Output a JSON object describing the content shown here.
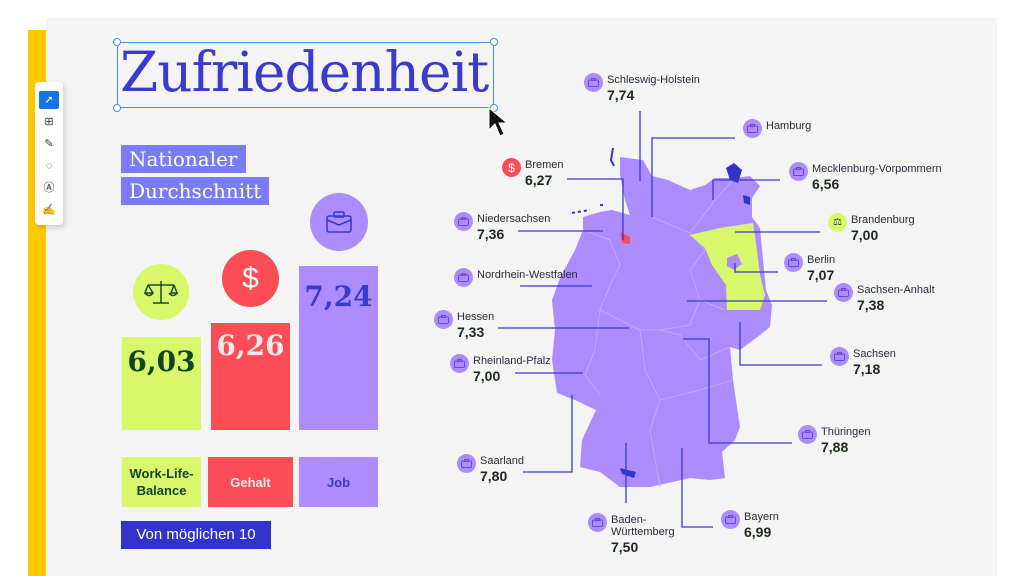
{
  "title": "Zufriedenheit",
  "subtitle": [
    "Nationaler",
    "Durchschnitt"
  ],
  "toolbar": {
    "tools": [
      "select-tool",
      "add-comment-tool",
      "highlight-tool",
      "draw-lasso-tool",
      "text-tool",
      "sign-tool"
    ]
  },
  "national": {
    "categories": [
      {
        "label": "Work-Life-Balance",
        "value": "6,03",
        "icon": "scale-icon",
        "color": "#d9f76a"
      },
      {
        "label": "Gehalt",
        "value": "6,26",
        "icon": "dollar-icon",
        "color": "#fa4d56"
      },
      {
        "label": "Job",
        "value": "7,24",
        "icon": "briefcase-icon",
        "color": "#ad8cff"
      }
    ],
    "footnote": "Von möglichen 10"
  },
  "colors": {
    "title": "#3a3acc",
    "lime": "#d9f76a",
    "red": "#fa4d56",
    "purple": "#ad8cff",
    "navy": "#3333cc",
    "map": "#ad8cff"
  },
  "regions": [
    {
      "name": "Schleswig-Holstein",
      "value": "7,74",
      "icon": "briefcase-icon"
    },
    {
      "name": "Hamburg",
      "value": "",
      "icon": "briefcase-icon"
    },
    {
      "name": "Bremen",
      "value": "6,27",
      "icon": "dollar-icon"
    },
    {
      "name": "Mecklenburg-Vorpommern",
      "value": "6,56",
      "icon": "briefcase-icon"
    },
    {
      "name": "Niedersachsen",
      "value": "7,36",
      "icon": "briefcase-icon"
    },
    {
      "name": "Brandenburg",
      "value": "7,00",
      "icon": "scale-icon"
    },
    {
      "name": "Berlin",
      "value": "7,07",
      "icon": "briefcase-icon"
    },
    {
      "name": "Nordrhein-Westfalen",
      "value": "",
      "icon": "briefcase-icon"
    },
    {
      "name": "Sachsen-Anhalt",
      "value": "7,38",
      "icon": "briefcase-icon"
    },
    {
      "name": "Hessen",
      "value": "7,33",
      "icon": "briefcase-icon"
    },
    {
      "name": "Rheinland-Pfalz",
      "value": "7,00",
      "icon": "briefcase-icon"
    },
    {
      "name": "Sachsen",
      "value": "7,18",
      "icon": "briefcase-icon"
    },
    {
      "name": "Thüringen",
      "value": "7,88",
      "icon": "briefcase-icon"
    },
    {
      "name": "Saarland",
      "value": "7,80",
      "icon": "briefcase-icon"
    },
    {
      "name": "Baden-Württemberg",
      "value": "7,50",
      "icon": "briefcase-icon"
    },
    {
      "name": "Bayern",
      "value": "6,99",
      "icon": "briefcase-icon"
    }
  ]
}
